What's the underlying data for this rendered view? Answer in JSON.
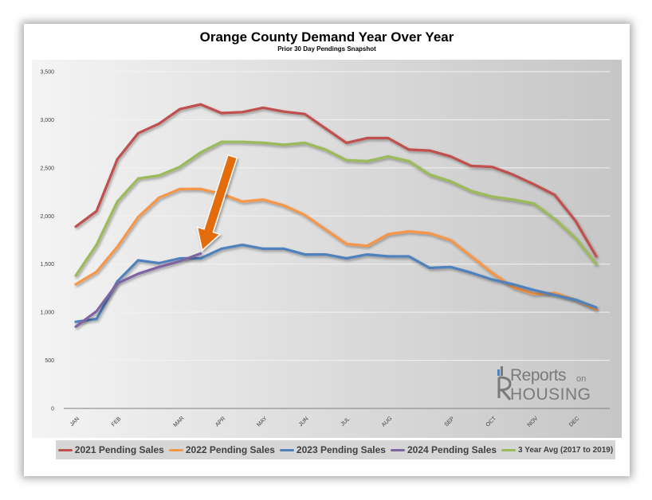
{
  "chart_data": {
    "type": "line",
    "title": "Orange County Demand Year Over Year",
    "subtitle": "Prior 30 Day Pendings Snapshot",
    "ylim": [
      0,
      3500
    ],
    "yticks": [
      "0",
      "500",
      "1,000",
      "1,500",
      "2,000",
      "2,500",
      "3,000",
      "3,500"
    ],
    "month_labels": [
      "JAN",
      "FEB",
      "MAR",
      "APR",
      "MAY",
      "JUN",
      "JUL",
      "AUG",
      "SEP",
      "OCT",
      "NOV",
      "DEC"
    ],
    "month_positions": [
      0,
      2,
      5,
      7,
      9,
      11,
      13,
      15,
      18,
      20,
      22,
      24
    ],
    "x_count": 26,
    "grid": true,
    "legend_position": "bottom",
    "series": [
      {
        "name": "2021 Pending Sales",
        "color": "#c0504d",
        "values": [
          1890,
          2050,
          2590,
          2860,
          2960,
          3110,
          3160,
          3070,
          3080,
          3125,
          3085,
          3060,
          2910,
          2760,
          2810,
          2810,
          2690,
          2680,
          2620,
          2520,
          2510,
          2430,
          2330,
          2220,
          1950,
          1580
        ]
      },
      {
        "name": "2022 Pending Sales",
        "color": "#f79646",
        "values": [
          1290,
          1420,
          1680,
          1990,
          2190,
          2280,
          2280,
          2230,
          2150,
          2170,
          2110,
          2010,
          1860,
          1710,
          1690,
          1810,
          1840,
          1820,
          1750,
          1580,
          1410,
          1260,
          1190,
          1200,
          1130,
          1030
        ]
      },
      {
        "name": "2023 Pending Sales",
        "color": "#4f81bd",
        "values": [
          900,
          930,
          1320,
          1540,
          1510,
          1560,
          1560,
          1660,
          1700,
          1660,
          1660,
          1600,
          1600,
          1560,
          1600,
          1580,
          1580,
          1460,
          1470,
          1410,
          1340,
          1290,
          1230,
          1180,
          1130,
          1050
        ]
      },
      {
        "name": "2024 Pending Sales",
        "color": "#8064a2",
        "values": [
          850,
          1010,
          1300,
          1400,
          1470,
          1530,
          1610
        ]
      },
      {
        "name": "3 Year Avg (2017 to 2019)",
        "color": "#9bbb59",
        "values": [
          1380,
          1700,
          2150,
          2390,
          2420,
          2510,
          2660,
          2770,
          2770,
          2760,
          2740,
          2760,
          2690,
          2580,
          2570,
          2620,
          2570,
          2430,
          2360,
          2260,
          2200,
          2170,
          2130,
          1970,
          1770,
          1500
        ]
      }
    ],
    "arrow": {
      "color": "#e36c09",
      "points_to_series": "2024 Pending Sales"
    }
  },
  "logo": {
    "reports": "Reports",
    "on": "on",
    "housing": "HOUSING"
  }
}
